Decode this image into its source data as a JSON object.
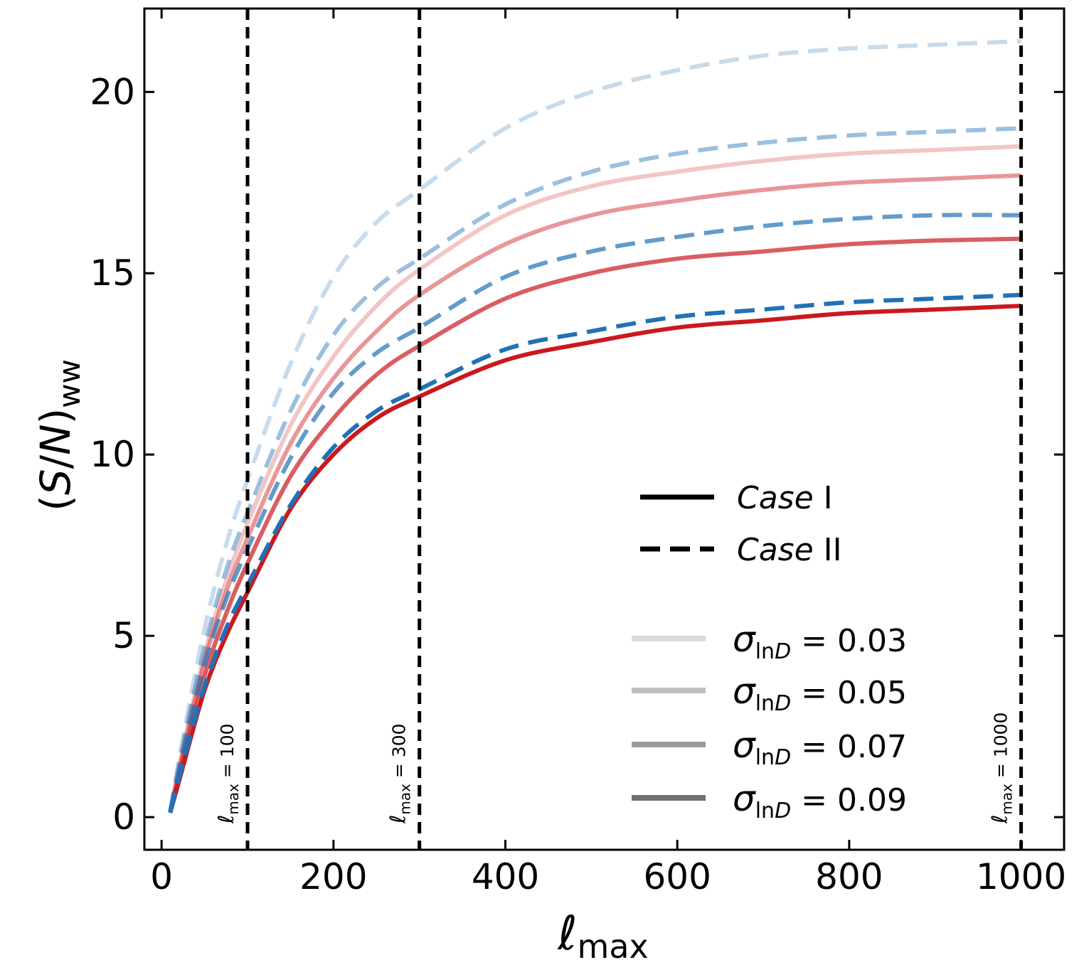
{
  "chart_data": {
    "type": "line",
    "xlabel": "ℓ",
    "xlabel_sub": "max",
    "ylabel": "(S/N)",
    "ylabel_sub": "ww",
    "xlim": [
      -20,
      1050
    ],
    "ylim": [
      -0.9,
      22.3
    ],
    "xticks": [
      0,
      200,
      400,
      600,
      800,
      1000
    ],
    "yticks": [
      0,
      5,
      10,
      15,
      20
    ],
    "grid": false,
    "legend_placement": "lower-right",
    "x": [
      10,
      25,
      50,
      75,
      100,
      150,
      200,
      250,
      300,
      400,
      500,
      600,
      700,
      800,
      900,
      1000
    ],
    "series": [
      {
        "case": "I",
        "sigma": "0.03",
        "color": "#cb181d",
        "opacity": 0.25,
        "values": [
          0.15,
          1.9,
          4.5,
          6.5,
          8.1,
          10.8,
          12.7,
          14.1,
          15.1,
          16.6,
          17.4,
          17.8,
          18.1,
          18.3,
          18.4,
          18.5
        ]
      },
      {
        "case": "I",
        "sigma": "0.05",
        "color": "#cb181d",
        "opacity": 0.45,
        "values": [
          0.14,
          1.8,
          4.3,
          6.2,
          7.7,
          10.3,
          12.1,
          13.4,
          14.4,
          15.8,
          16.6,
          17.0,
          17.3,
          17.5,
          17.6,
          17.7
        ]
      },
      {
        "case": "I",
        "sigma": "0.07",
        "color": "#cb181d",
        "opacity": 0.7,
        "values": [
          0.13,
          1.6,
          3.9,
          5.6,
          7.0,
          9.4,
          11.0,
          12.2,
          13.0,
          14.3,
          15.0,
          15.4,
          15.6,
          15.8,
          15.9,
          15.95
        ]
      },
      {
        "case": "I",
        "sigma": "0.09",
        "color": "#cb181d",
        "opacity": 1.0,
        "values": [
          0.12,
          1.4,
          3.5,
          5.0,
          6.2,
          8.5,
          10.0,
          11.0,
          11.6,
          12.6,
          13.1,
          13.5,
          13.7,
          13.9,
          14.0,
          14.1
        ]
      },
      {
        "case": "II",
        "sigma": "0.03",
        "color": "#2171b5",
        "opacity": 0.25,
        "values": [
          0.17,
          2.2,
          5.2,
          7.5,
          9.3,
          12.5,
          14.9,
          16.4,
          17.3,
          19.0,
          20.0,
          20.6,
          21.0,
          21.2,
          21.3,
          21.4
        ]
      },
      {
        "case": "II",
        "sigma": "0.05",
        "color": "#2171b5",
        "opacity": 0.45,
        "values": [
          0.15,
          2.0,
          4.7,
          6.8,
          8.4,
          11.2,
          13.3,
          14.6,
          15.4,
          16.9,
          17.8,
          18.3,
          18.6,
          18.8,
          18.9,
          19.0
        ]
      },
      {
        "case": "II",
        "sigma": "0.07",
        "color": "#2171b5",
        "opacity": 0.7,
        "values": [
          0.14,
          1.7,
          4.2,
          6.0,
          7.4,
          9.9,
          11.7,
          12.8,
          13.5,
          14.9,
          15.6,
          16.0,
          16.3,
          16.5,
          16.6,
          16.6
        ]
      },
      {
        "case": "II",
        "sigma": "0.09",
        "color": "#2171b5",
        "opacity": 1.0,
        "values": [
          0.12,
          1.5,
          3.6,
          5.2,
          6.4,
          8.6,
          10.2,
          11.2,
          11.8,
          12.9,
          13.4,
          13.8,
          14.0,
          14.2,
          14.3,
          14.4
        ]
      }
    ],
    "vlines": [
      {
        "x": 100,
        "label_base": "ℓ",
        "label_sub": "max",
        "label_rest": " = 100"
      },
      {
        "x": 300,
        "label_base": "ℓ",
        "label_sub": "max",
        "label_rest": " = 300"
      },
      {
        "x": 1000,
        "label_base": "ℓ",
        "label_sub": "max",
        "label_rest": " = 1000"
      }
    ],
    "legend_case": [
      {
        "italic": "Case",
        "roman": " I",
        "dash": "solid"
      },
      {
        "italic": "Case",
        "roman": " II",
        "dash": "dashed"
      }
    ],
    "legend_sigma": [
      {
        "base": "σ",
        "sub_roman": "ln",
        "sub_italic": "D",
        "rest": " = 0.03",
        "opacity": 0.25
      },
      {
        "base": "σ",
        "sub_roman": "ln",
        "sub_italic": "D",
        "rest": " = 0.05",
        "opacity": 0.45
      },
      {
        "base": "σ",
        "sub_roman": "ln",
        "sub_italic": "D",
        "rest": " = 0.07",
        "opacity": 0.7
      },
      {
        "base": "σ",
        "sub_roman": "ln",
        "sub_italic": "D",
        "rest": " = 0.09",
        "opacity": 1.0
      }
    ],
    "legend_gray": "#707070",
    "axis_color": "#000000"
  }
}
